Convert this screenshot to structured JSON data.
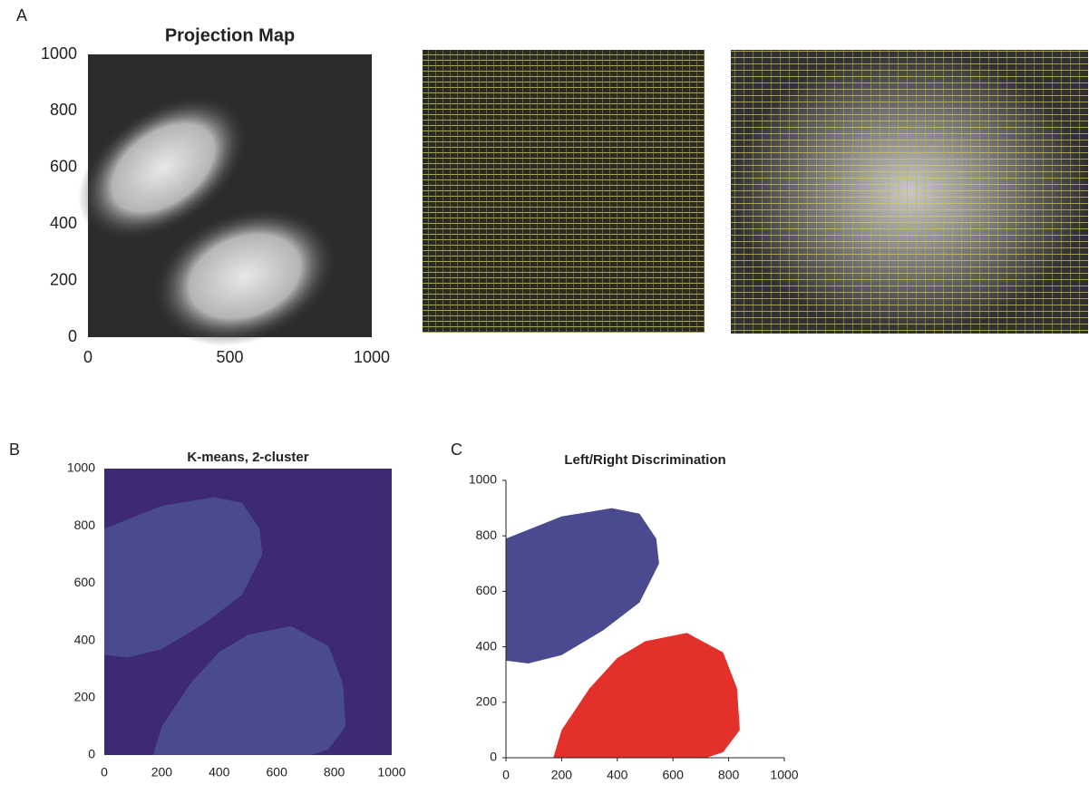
{
  "panel_labels": [
    "A",
    "B",
    "C"
  ],
  "chart_data": [
    {
      "type": "image",
      "title": "Projection Map",
      "xlim": [
        0,
        1000
      ],
      "ylim": [
        0,
        1000
      ],
      "xticks": [
        0,
        500,
        1000
      ],
      "yticks": [
        0,
        200,
        400,
        600,
        800,
        1000
      ]
    },
    {
      "type": "image",
      "title": "K-means, 2-cluster",
      "xlim": [
        0,
        1000
      ],
      "ylim": [
        0,
        1000
      ],
      "xticks": [
        0,
        200,
        400,
        600,
        800,
        1000
      ],
      "yticks": [
        0,
        200,
        400,
        600,
        800,
        1000
      ]
    },
    {
      "type": "image",
      "title": "Left/Right Discrimination",
      "xlim": [
        0,
        1000
      ],
      "ylim": [
        0,
        1000
      ],
      "xticks": [
        0,
        200,
        400,
        600,
        800,
        1000
      ],
      "yticks": [
        0,
        200,
        400,
        600,
        800,
        1000
      ]
    }
  ]
}
